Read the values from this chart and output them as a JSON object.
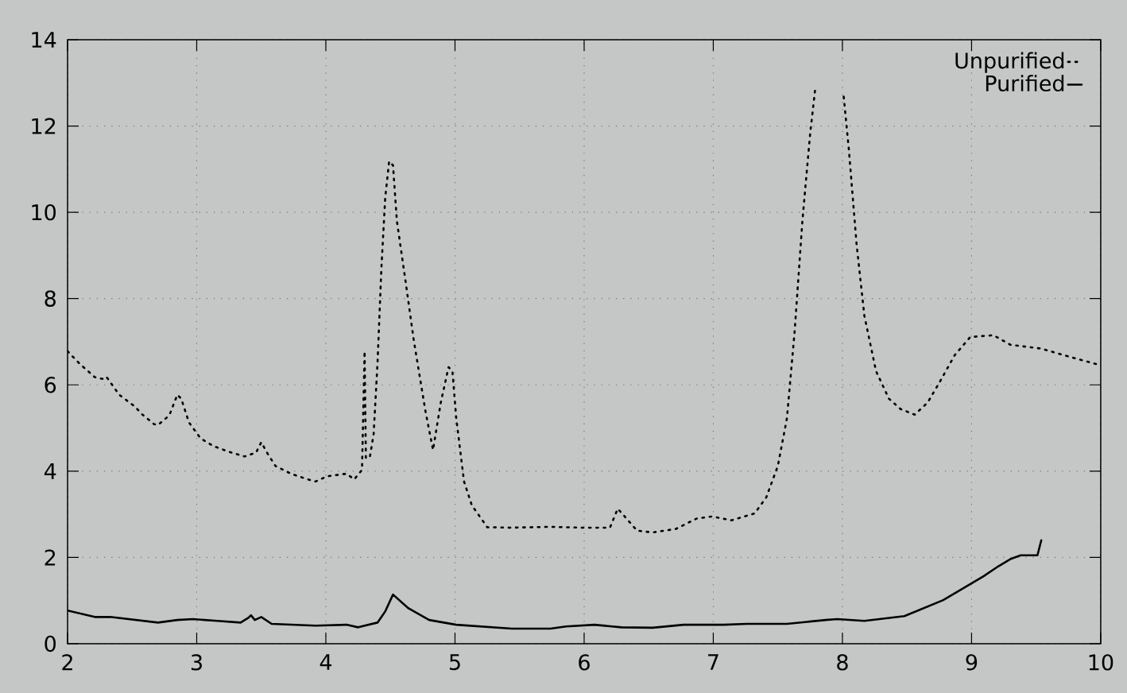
{
  "chart_data": {
    "type": "line",
    "xlim": [
      2,
      10
    ],
    "ylim": [
      0,
      14
    ],
    "xticks": [
      2,
      3,
      4,
      5,
      6,
      7,
      8,
      9,
      10
    ],
    "yticks": [
      0,
      2,
      4,
      6,
      8,
      10,
      12,
      14
    ],
    "grid": true,
    "legend": "top right",
    "marker": "none",
    "series": [
      {
        "name": "Unpurified",
        "color": "#000000",
        "line_style": "dotted",
        "x": [
          2.0,
          2.09,
          2.21,
          2.27,
          2.3,
          2.4,
          2.52,
          2.58,
          2.67,
          2.7,
          2.76,
          2.79,
          2.85,
          2.88,
          2.94,
          3.03,
          3.13,
          3.25,
          3.37,
          3.46,
          3.5,
          3.55,
          3.61,
          3.73,
          3.86,
          3.92,
          4.01,
          4.16,
          4.22,
          4.28,
          4.3,
          4.31,
          4.34,
          4.37,
          4.4,
          4.43,
          4.46,
          4.49,
          4.52,
          4.55,
          4.62,
          4.68,
          4.77,
          4.83,
          4.89,
          4.95,
          4.98,
          5.01,
          5.07,
          5.13,
          5.25,
          5.44,
          5.74,
          5.98,
          6.2,
          6.26,
          6.32,
          6.41,
          6.53,
          6.71,
          6.87,
          6.99,
          7.14,
          7.32,
          7.41,
          7.5,
          7.57,
          7.63,
          7.69,
          7.75,
          7.79,
          7.9,
          8.01,
          8.05,
          8.11,
          8.17,
          8.26,
          8.36,
          8.45,
          8.56,
          8.66,
          8.75,
          8.87,
          8.99,
          9.17,
          9.3,
          9.54,
          9.76,
          9.98
        ],
        "values": [
          6.78,
          6.5,
          6.18,
          6.14,
          6.19,
          5.77,
          5.5,
          5.31,
          5.09,
          5.07,
          5.22,
          5.31,
          5.77,
          5.68,
          5.13,
          4.76,
          4.58,
          4.45,
          4.34,
          4.43,
          4.67,
          4.4,
          4.12,
          3.94,
          3.81,
          3.76,
          3.88,
          3.94,
          3.81,
          4.03,
          6.78,
          4.31,
          4.31,
          4.86,
          6.5,
          8.7,
          10.35,
          11.18,
          11.09,
          9.8,
          8.34,
          7.05,
          5.41,
          4.49,
          5.59,
          6.41,
          6.32,
          5.22,
          3.76,
          3.21,
          2.7,
          2.69,
          2.71,
          2.69,
          2.69,
          3.13,
          2.93,
          2.62,
          2.58,
          2.66,
          2.9,
          2.95,
          2.86,
          3.02,
          3.39,
          4.12,
          5.22,
          7.24,
          9.8,
          11.82,
          12.88,
          null,
          12.68,
          11.45,
          9.25,
          7.6,
          6.32,
          5.68,
          5.44,
          5.31,
          5.59,
          6.05,
          6.69,
          7.11,
          7.15,
          6.93,
          6.84,
          6.65,
          6.47
        ]
      },
      {
        "name": "Purified",
        "color": "#000000",
        "line_style": "solid",
        "x": [
          2.0,
          2.21,
          2.33,
          2.7,
          2.85,
          2.97,
          3.16,
          3.34,
          3.4,
          3.42,
          3.45,
          3.5,
          3.58,
          3.92,
          4.16,
          4.25,
          4.4,
          4.46,
          4.52,
          4.64,
          4.8,
          5.01,
          5.44,
          5.74,
          5.86,
          6.08,
          6.29,
          6.53,
          6.77,
          7.08,
          7.26,
          7.57,
          7.87,
          7.96,
          8.17,
          8.48,
          8.78,
          9.09,
          9.21,
          9.3,
          9.38,
          9.51,
          9.54
        ],
        "values": [
          0.77,
          0.62,
          0.62,
          0.49,
          0.55,
          0.57,
          0.53,
          0.49,
          0.6,
          0.66,
          0.55,
          0.62,
          0.46,
          0.42,
          0.44,
          0.38,
          0.49,
          0.75,
          1.14,
          0.82,
          0.55,
          0.44,
          0.35,
          0.35,
          0.4,
          0.44,
          0.38,
          0.37,
          0.44,
          0.44,
          0.46,
          0.46,
          0.55,
          0.57,
          0.53,
          0.64,
          1.01,
          1.56,
          1.8,
          1.96,
          2.05,
          2.05,
          2.4
        ]
      }
    ]
  }
}
